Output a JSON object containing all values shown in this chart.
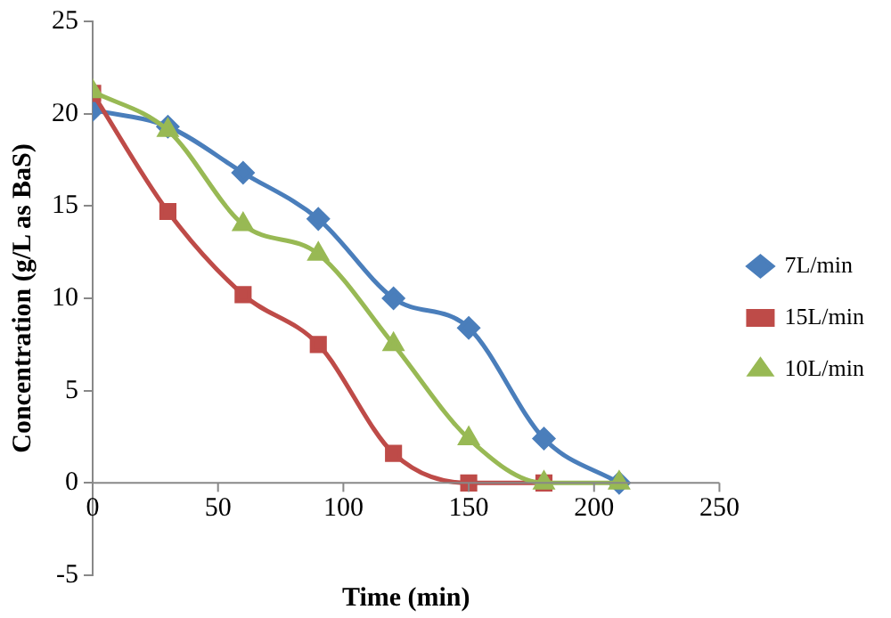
{
  "chart_data": {
    "type": "line",
    "xlabel": "Time (min)",
    "ylabel": "Concentration (g/L as BaS)",
    "x": [
      0,
      30,
      60,
      90,
      120,
      150,
      180,
      210
    ],
    "series": [
      {
        "name": "7L/min",
        "color": "#4a7ebb",
        "marker": "diamond",
        "values": [
          20.2,
          19.3,
          16.8,
          14.3,
          10.0,
          8.4,
          2.4,
          0
        ]
      },
      {
        "name": "15L/min",
        "color": "#be4b48",
        "marker": "square",
        "values": [
          21.1,
          14.7,
          10.2,
          7.5,
          1.6,
          0,
          0,
          null
        ]
      },
      {
        "name": "10L/min",
        "color": "#98b954",
        "marker": "triangle",
        "values": [
          21.2,
          19.1,
          14.0,
          12.4,
          7.5,
          2.4,
          0,
          0
        ]
      }
    ],
    "xlim": [
      0,
      250
    ],
    "xticks": [
      0,
      50,
      100,
      150,
      200,
      250
    ],
    "ylim": [
      -5,
      25
    ],
    "yticks": [
      -5,
      0,
      5,
      10,
      15,
      20,
      25
    ],
    "grid": false,
    "legend": "right",
    "line_style": "solid"
  }
}
